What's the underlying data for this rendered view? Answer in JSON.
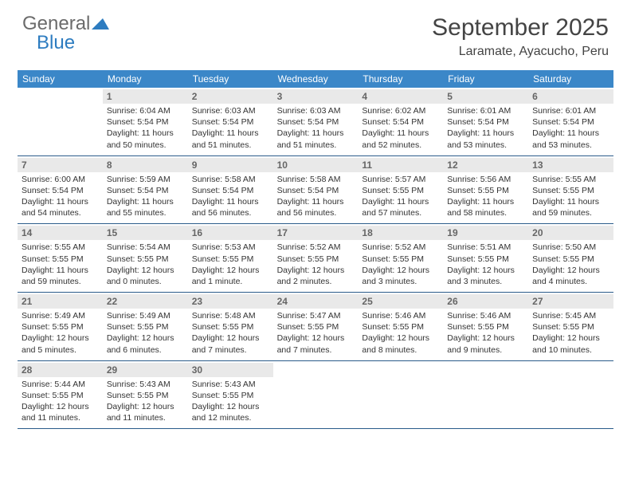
{
  "logo": {
    "word1": "General",
    "word2": "Blue"
  },
  "title": "September 2025",
  "location": "Laramate, Ayacucho, Peru",
  "colors": {
    "header_bg": "#3b87c8",
    "header_text": "#ffffff",
    "daynum_bg": "#e9e9e9",
    "rule": "#2a5b8a",
    "logo_gray": "#6b6b6b",
    "logo_blue": "#2d7cc0"
  },
  "day_headers": [
    "Sunday",
    "Monday",
    "Tuesday",
    "Wednesday",
    "Thursday",
    "Friday",
    "Saturday"
  ],
  "weeks": [
    [
      null,
      {
        "n": "1",
        "sr": "6:04 AM",
        "ss": "5:54 PM",
        "dl": "11 hours and 50 minutes."
      },
      {
        "n": "2",
        "sr": "6:03 AM",
        "ss": "5:54 PM",
        "dl": "11 hours and 51 minutes."
      },
      {
        "n": "3",
        "sr": "6:03 AM",
        "ss": "5:54 PM",
        "dl": "11 hours and 51 minutes."
      },
      {
        "n": "4",
        "sr": "6:02 AM",
        "ss": "5:54 PM",
        "dl": "11 hours and 52 minutes."
      },
      {
        "n": "5",
        "sr": "6:01 AM",
        "ss": "5:54 PM",
        "dl": "11 hours and 53 minutes."
      },
      {
        "n": "6",
        "sr": "6:01 AM",
        "ss": "5:54 PM",
        "dl": "11 hours and 53 minutes."
      }
    ],
    [
      {
        "n": "7",
        "sr": "6:00 AM",
        "ss": "5:54 PM",
        "dl": "11 hours and 54 minutes."
      },
      {
        "n": "8",
        "sr": "5:59 AM",
        "ss": "5:54 PM",
        "dl": "11 hours and 55 minutes."
      },
      {
        "n": "9",
        "sr": "5:58 AM",
        "ss": "5:54 PM",
        "dl": "11 hours and 56 minutes."
      },
      {
        "n": "10",
        "sr": "5:58 AM",
        "ss": "5:54 PM",
        "dl": "11 hours and 56 minutes."
      },
      {
        "n": "11",
        "sr": "5:57 AM",
        "ss": "5:55 PM",
        "dl": "11 hours and 57 minutes."
      },
      {
        "n": "12",
        "sr": "5:56 AM",
        "ss": "5:55 PM",
        "dl": "11 hours and 58 minutes."
      },
      {
        "n": "13",
        "sr": "5:55 AM",
        "ss": "5:55 PM",
        "dl": "11 hours and 59 minutes."
      }
    ],
    [
      {
        "n": "14",
        "sr": "5:55 AM",
        "ss": "5:55 PM",
        "dl": "11 hours and 59 minutes."
      },
      {
        "n": "15",
        "sr": "5:54 AM",
        "ss": "5:55 PM",
        "dl": "12 hours and 0 minutes."
      },
      {
        "n": "16",
        "sr": "5:53 AM",
        "ss": "5:55 PM",
        "dl": "12 hours and 1 minute."
      },
      {
        "n": "17",
        "sr": "5:52 AM",
        "ss": "5:55 PM",
        "dl": "12 hours and 2 minutes."
      },
      {
        "n": "18",
        "sr": "5:52 AM",
        "ss": "5:55 PM",
        "dl": "12 hours and 3 minutes."
      },
      {
        "n": "19",
        "sr": "5:51 AM",
        "ss": "5:55 PM",
        "dl": "12 hours and 3 minutes."
      },
      {
        "n": "20",
        "sr": "5:50 AM",
        "ss": "5:55 PM",
        "dl": "12 hours and 4 minutes."
      }
    ],
    [
      {
        "n": "21",
        "sr": "5:49 AM",
        "ss": "5:55 PM",
        "dl": "12 hours and 5 minutes."
      },
      {
        "n": "22",
        "sr": "5:49 AM",
        "ss": "5:55 PM",
        "dl": "12 hours and 6 minutes."
      },
      {
        "n": "23",
        "sr": "5:48 AM",
        "ss": "5:55 PM",
        "dl": "12 hours and 7 minutes."
      },
      {
        "n": "24",
        "sr": "5:47 AM",
        "ss": "5:55 PM",
        "dl": "12 hours and 7 minutes."
      },
      {
        "n": "25",
        "sr": "5:46 AM",
        "ss": "5:55 PM",
        "dl": "12 hours and 8 minutes."
      },
      {
        "n": "26",
        "sr": "5:46 AM",
        "ss": "5:55 PM",
        "dl": "12 hours and 9 minutes."
      },
      {
        "n": "27",
        "sr": "5:45 AM",
        "ss": "5:55 PM",
        "dl": "12 hours and 10 minutes."
      }
    ],
    [
      {
        "n": "28",
        "sr": "5:44 AM",
        "ss": "5:55 PM",
        "dl": "12 hours and 11 minutes."
      },
      {
        "n": "29",
        "sr": "5:43 AM",
        "ss": "5:55 PM",
        "dl": "12 hours and 11 minutes."
      },
      {
        "n": "30",
        "sr": "5:43 AM",
        "ss": "5:55 PM",
        "dl": "12 hours and 12 minutes."
      },
      null,
      null,
      null,
      null
    ]
  ],
  "labels": {
    "sunrise": "Sunrise:",
    "sunset": "Sunset:",
    "daylight": "Daylight:"
  }
}
